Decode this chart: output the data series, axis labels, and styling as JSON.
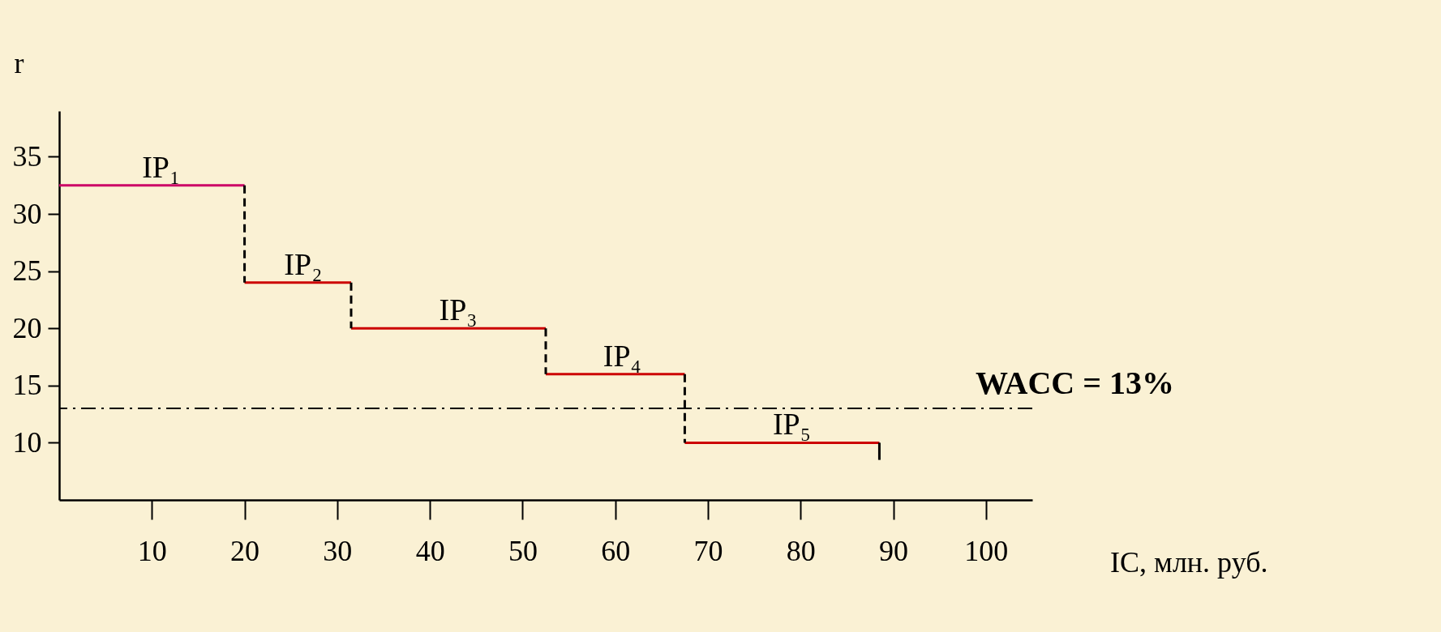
{
  "chart_data": {
    "type": "line",
    "xlabel": "IC, млн. руб.",
    "ylabel": "r",
    "xlim": [
      0,
      105
    ],
    "ylim": [
      5,
      39
    ],
    "xticks": [
      10,
      20,
      30,
      40,
      50,
      60,
      70,
      80,
      90,
      100
    ],
    "yticks": [
      10,
      15,
      20,
      25,
      30,
      35
    ],
    "grid": false,
    "series": [
      {
        "name": "IP₁",
        "color": "#cc0066",
        "values": [
          32.5,
          32.5
        ],
        "x": [
          0,
          20
        ]
      },
      {
        "name": "IP₂",
        "color": "#cc0000",
        "values": [
          24,
          24
        ],
        "x": [
          20,
          31.5
        ]
      },
      {
        "name": "IP₃",
        "color": "#cc0000",
        "values": [
          20,
          20
        ],
        "x": [
          31.5,
          52.5
        ]
      },
      {
        "name": "IP₄",
        "color": "#cc0000",
        "values": [
          16,
          16
        ],
        "x": [
          52.5,
          67.5
        ]
      },
      {
        "name": "IP₅",
        "color": "#cc0000",
        "values": [
          10,
          10
        ],
        "x": [
          67.5,
          88.5
        ]
      },
      {
        "color": "#000000",
        "line_style": "dashed",
        "values": [
          32.5,
          24
        ],
        "x": [
          20,
          20
        ]
      },
      {
        "color": "#000000",
        "line_style": "dashed",
        "values": [
          24,
          20
        ],
        "x": [
          31.5,
          31.5
        ]
      },
      {
        "color": "#000000",
        "line_style": "dashed",
        "values": [
          20,
          16
        ],
        "x": [
          52.5,
          52.5
        ]
      },
      {
        "color": "#000000",
        "line_style": "dashed",
        "values": [
          16,
          10
        ],
        "x": [
          67.5,
          67.5
        ]
      },
      {
        "color": "#000000",
        "values": [
          10,
          8.5
        ],
        "x": [
          88.5,
          88.5
        ]
      }
    ],
    "ref_lines": [
      {
        "axis": "y",
        "value": 13,
        "label": "WACC = 13%",
        "color": "#000000",
        "line_style": "dashdot"
      }
    ]
  }
}
